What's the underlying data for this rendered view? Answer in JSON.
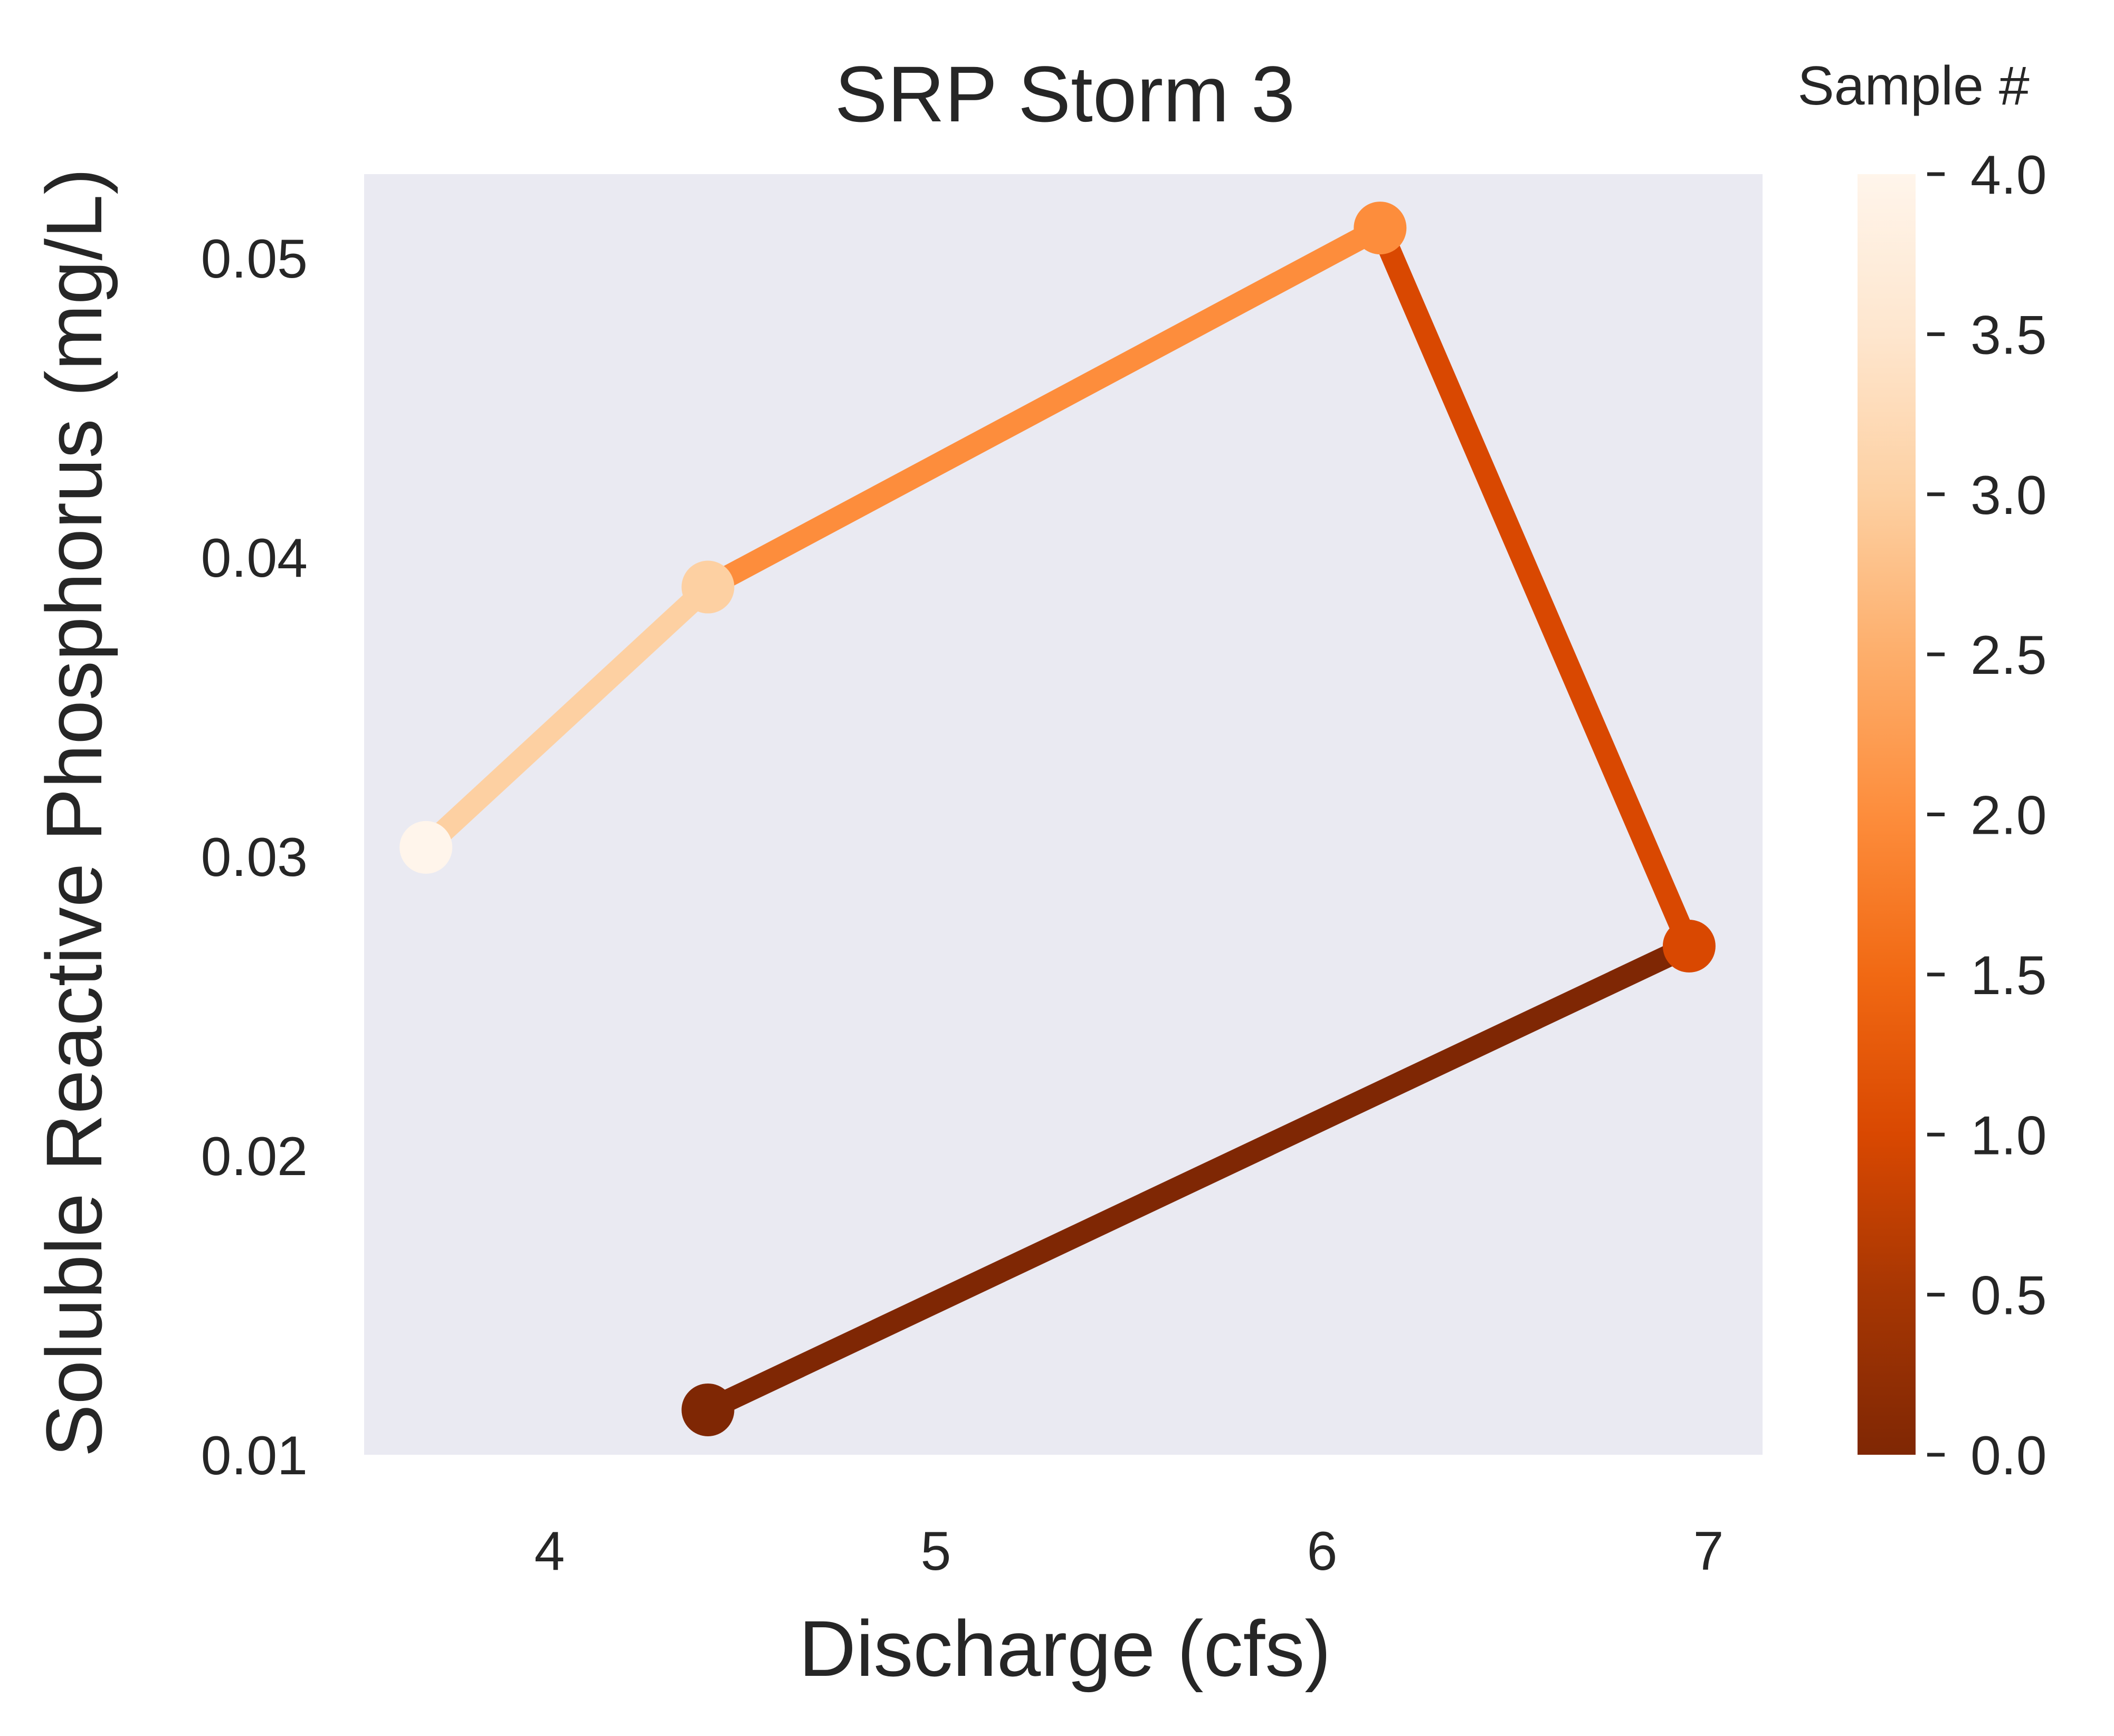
{
  "chart_data": {
    "type": "line",
    "title": "SRP Storm 3",
    "xlabel": "Discharge (cfs)",
    "ylabel": "Soluble Reactive Phosphorus (mg/L)",
    "xlim": [
      3.52,
      7.14
    ],
    "ylim": [
      0.01,
      0.0528
    ],
    "xticks": [
      4,
      5,
      6,
      7
    ],
    "xtick_labels": [
      "4",
      "5",
      "6",
      "7"
    ],
    "yticks": [
      0.01,
      0.02,
      0.03,
      0.04,
      0.05
    ],
    "ytick_labels": [
      "0.01",
      "0.02",
      "0.03",
      "0.04",
      "0.05"
    ],
    "grid": false,
    "plot_background": "#EAEAF2",
    "colormap": "Oranges_r",
    "points": [
      {
        "sample": 0,
        "x": 4.41,
        "y": 0.0115
      },
      {
        "sample": 1,
        "x": 6.95,
        "y": 0.027
      },
      {
        "sample": 2,
        "x": 6.15,
        "y": 0.051
      },
      {
        "sample": 3,
        "x": 4.41,
        "y": 0.039
      },
      {
        "sample": 4,
        "x": 3.68,
        "y": 0.0303
      }
    ],
    "segment_colors": [
      "#7F2704",
      "#D94801",
      "#FD8D3C",
      "#FDD0A2"
    ],
    "marker_colors": [
      "#7F2704",
      "#D94801",
      "#FD8D3C",
      "#FDD0A2",
      "#FFF5EB"
    ],
    "colorbar": {
      "title": "Sample #",
      "range": [
        0,
        4
      ],
      "ticks": [
        0.0,
        0.5,
        1.0,
        1.5,
        2.0,
        2.5,
        3.0,
        3.5,
        4.0
      ],
      "tick_labels": [
        "0.0",
        "0.5",
        "1.0",
        "1.5",
        "2.0",
        "2.5",
        "3.0",
        "3.5",
        "4.0"
      ],
      "gradient_stops": [
        "#7F2704",
        "#A63603",
        "#D94801",
        "#F16913",
        "#FD8D3C",
        "#FDAE6B",
        "#FDD0A2",
        "#FEE6CE",
        "#FFF5EB"
      ]
    }
  }
}
